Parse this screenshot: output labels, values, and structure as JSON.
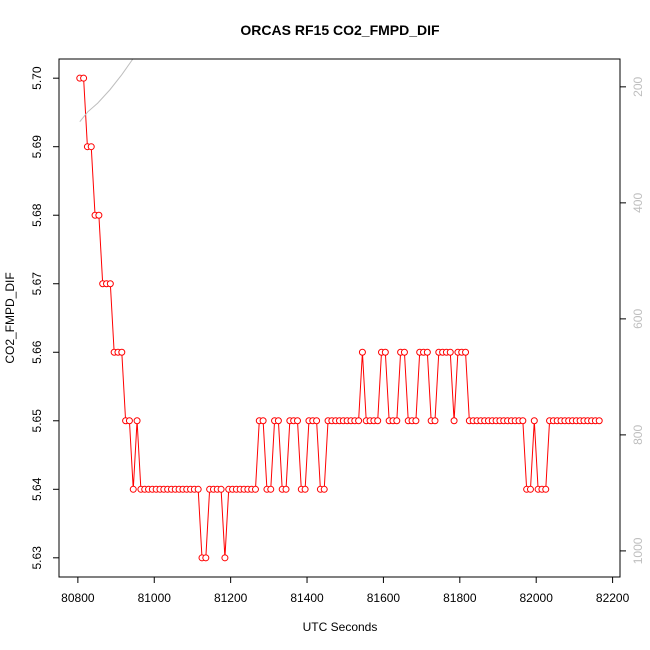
{
  "chart_data": {
    "type": "line",
    "title": "ORCAS RF15 CO2_FMPD_DIF",
    "xlabel": "UTC Seconds",
    "ylabel": "CO2_FMPD_DIF",
    "xlim": [
      80750.6,
      82219.4
    ],
    "xticks": [
      80800,
      81000,
      81200,
      81400,
      81600,
      81800,
      82000,
      82200
    ],
    "ylim": [
      5.6272,
      5.7028
    ],
    "yticks": [
      5.63,
      5.64,
      5.65,
      5.66,
      5.67,
      5.68,
      5.69,
      {
        "value": 5.7,
        "label": "5.70"
      }
    ],
    "y2lim": [
      1045,
      152
    ],
    "y2ticks": [
      200,
      400,
      600,
      800,
      1000
    ],
    "series": [
      {
        "color": "#ff0000",
        "marker": "circle",
        "x": [
          80805,
          80815,
          80825,
          80835,
          80845,
          80855,
          80865,
          80875,
          80885,
          80895,
          80905,
          80915,
          80925,
          80935,
          80945,
          80955,
          80965,
          80975,
          80985,
          80995,
          81005,
          81015,
          81025,
          81035,
          81045,
          81055,
          81065,
          81075,
          81085,
          81095,
          81105,
          81115,
          81125,
          81135,
          81145,
          81155,
          81165,
          81175,
          81185,
          81195,
          81205,
          81215,
          81225,
          81235,
          81245,
          81255,
          81265,
          81275,
          81285,
          81295,
          81305,
          81315,
          81325,
          81335,
          81345,
          81355,
          81365,
          81375,
          81385,
          81395,
          81405,
          81415,
          81425,
          81435,
          81445,
          81455,
          81465,
          81475,
          81485,
          81495,
          81505,
          81515,
          81525,
          81535,
          81545,
          81555,
          81565,
          81575,
          81585,
          81595,
          81605,
          81615,
          81625,
          81635,
          81645,
          81655,
          81665,
          81675,
          81685,
          81695,
          81705,
          81715,
          81725,
          81735,
          81745,
          81755,
          81765,
          81775,
          81785,
          81795,
          81805,
          81815,
          81825,
          81835,
          81845,
          81855,
          81865,
          81875,
          81885,
          81895,
          81905,
          81915,
          81925,
          81935,
          81945,
          81955,
          81965,
          81975,
          81985,
          81995,
          82005,
          82015,
          82025,
          82035,
          82045,
          82055,
          82065,
          82075,
          82085,
          82095,
          82105,
          82115,
          82125,
          82135,
          82145,
          82155,
          82165
        ],
        "values": [
          5.7,
          5.7,
          5.69,
          5.69,
          5.68,
          5.68,
          5.67,
          5.67,
          5.67,
          5.66,
          5.66,
          5.66,
          5.65,
          5.65,
          5.64,
          5.65,
          5.64,
          5.64,
          5.64,
          5.64,
          5.64,
          5.64,
          5.64,
          5.64,
          5.64,
          5.64,
          5.64,
          5.64,
          5.64,
          5.64,
          5.64,
          5.64,
          5.63,
          5.63,
          5.64,
          5.64,
          5.64,
          5.64,
          5.63,
          5.64,
          5.64,
          5.64,
          5.64,
          5.64,
          5.64,
          5.64,
          5.64,
          5.65,
          5.65,
          5.64,
          5.64,
          5.65,
          5.65,
          5.64,
          5.64,
          5.65,
          5.65,
          5.65,
          5.64,
          5.64,
          5.65,
          5.65,
          5.65,
          5.64,
          5.64,
          5.65,
          5.65,
          5.65,
          5.65,
          5.65,
          5.65,
          5.65,
          5.65,
          5.65,
          5.66,
          5.65,
          5.65,
          5.65,
          5.65,
          5.66,
          5.66,
          5.65,
          5.65,
          5.65,
          5.66,
          5.66,
          5.65,
          5.65,
          5.65,
          5.66,
          5.66,
          5.66,
          5.65,
          5.65,
          5.66,
          5.66,
          5.66,
          5.66,
          5.65,
          5.66,
          5.66,
          5.66,
          5.65,
          5.65,
          5.65,
          5.65,
          5.65,
          5.65,
          5.65,
          5.65,
          5.65,
          5.65,
          5.65,
          5.65,
          5.65,
          5.65,
          5.65,
          5.64,
          5.64,
          5.65,
          5.64,
          5.64,
          5.64,
          5.65,
          5.65,
          5.65,
          5.65,
          5.65,
          5.65,
          5.65,
          5.65,
          5.65,
          5.65,
          5.65,
          5.65,
          5.65,
          5.65
        ]
      },
      {
        "color": "#bebebe",
        "axis": "y2",
        "x": [
          80805,
          80826,
          80852,
          80884,
          80915,
          80944
        ],
        "values": [
          260,
          243,
          228,
          205,
          179,
          152
        ]
      }
    ]
  }
}
